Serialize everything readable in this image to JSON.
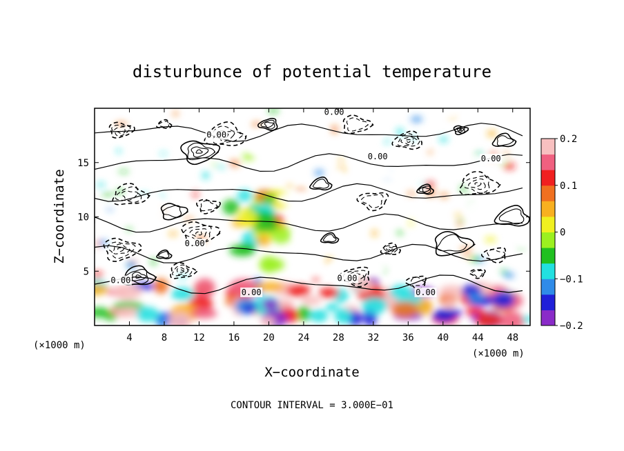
{
  "chart_data": {
    "type": "heatmap",
    "title": "disturbunce of potential temperature",
    "xlabel": "X−coordinate",
    "ylabel": "Z−coordinate",
    "x_unit_left": "(×1000 m)",
    "x_unit_right": "(×1000 m)",
    "x_ticks": [
      4,
      8,
      12,
      16,
      20,
      24,
      28,
      32,
      36,
      40,
      44,
      48
    ],
    "y_ticks": [
      5,
      10,
      15
    ],
    "xlim": [
      0,
      50
    ],
    "ylim": [
      0,
      20
    ],
    "colorbar": {
      "min": -0.2,
      "max": 0.2,
      "tick_values": [
        0.2,
        0.1,
        0,
        -0.1,
        -0.2
      ],
      "tick_labels": [
        "0.2",
        "0.1",
        "0",
        "−0.1",
        "−0.2"
      ],
      "colors": [
        "#8a2bc8",
        "#2020d8",
        "#2f8be8",
        "#22e0e0",
        "#20c020",
        "#9cf020",
        "#f0f020",
        "#f8b020",
        "#f07020",
        "#f02020",
        "#f06080",
        "#f8c0c0"
      ]
    },
    "contour_labels": [
      {
        "text": "0.00",
        "x": 27.5,
        "y": 19.4
      },
      {
        "text": "0.00",
        "x": 14.0,
        "y": 17.3
      },
      {
        "text": "0.00",
        "x": 32.5,
        "y": 15.3
      },
      {
        "text": "0.00",
        "x": 45.5,
        "y": 15.1
      },
      {
        "text": "0.00",
        "x": 11.5,
        "y": 7.3
      },
      {
        "text": "0.00",
        "x": 3.0,
        "y": 3.9
      },
      {
        "text": "0.00",
        "x": 18.0,
        "y": 2.8
      },
      {
        "text": "0.00",
        "x": 29.0,
        "y": 4.1
      },
      {
        "text": "0.00",
        "x": 38.0,
        "y": 2.8
      }
    ],
    "contour_interval_text": "CONTOUR INTERVAL = 3.000E−01",
    "grid": false
  }
}
